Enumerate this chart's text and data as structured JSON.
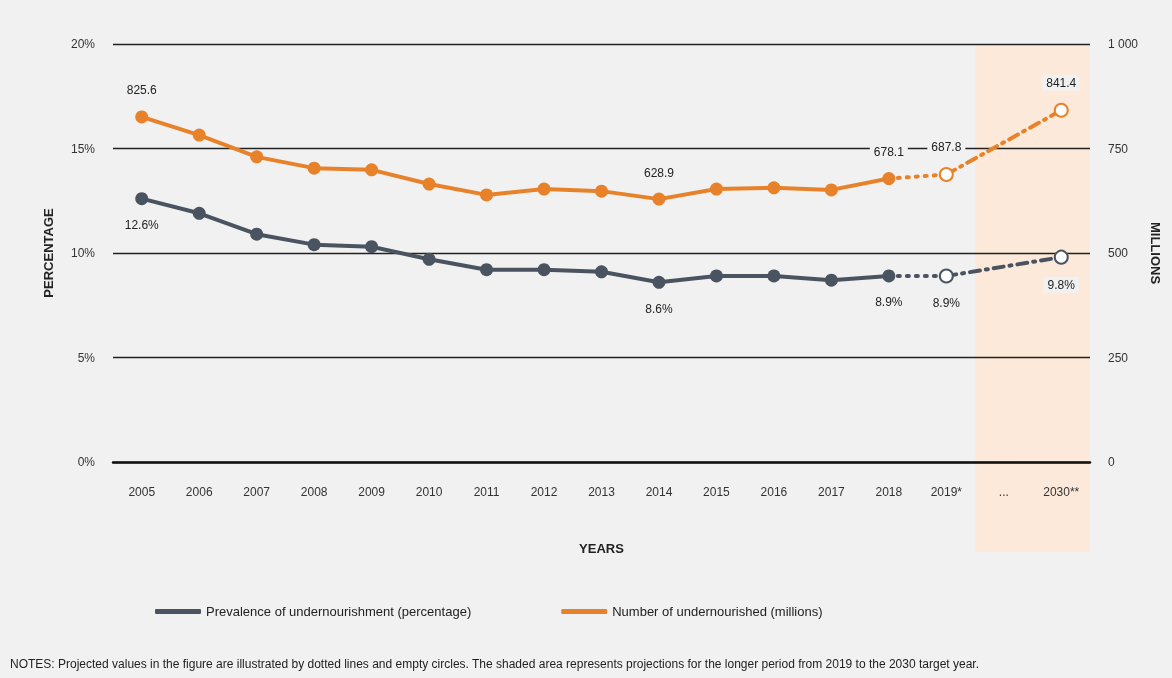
{
  "chart_data": {
    "type": "line",
    "categories": [
      "2005",
      "2006",
      "2007",
      "2008",
      "2009",
      "2010",
      "2011",
      "2012",
      "2013",
      "2014",
      "2015",
      "2016",
      "2017",
      "2018",
      "2019*",
      "...",
      "2030**"
    ],
    "series": [
      {
        "name": "Prevalence of undernourishment (percentage)",
        "color": "#4a5461",
        "line_style": "solid",
        "marker": "circle",
        "values": [
          12.6,
          11.9,
          10.9,
          10.4,
          10.3,
          9.7,
          9.2,
          9.2,
          9.1,
          8.6,
          8.9,
          8.9,
          8.7,
          8.9,
          null,
          null,
          null
        ],
        "value_labels": [
          "12.6%",
          null,
          null,
          null,
          null,
          null,
          null,
          null,
          null,
          "8.6%",
          null,
          null,
          null,
          "8.9%",
          null,
          null,
          null
        ]
      },
      {
        "color": "#4a5461",
        "line_style": "dotted",
        "values": [
          null,
          null,
          null,
          null,
          null,
          null,
          null,
          null,
          null,
          null,
          null,
          null,
          null,
          8.9,
          8.9,
          null,
          null
        ]
      },
      {
        "color": "#4a5461",
        "line_style": "dashed",
        "marker": "circle",
        "values": [
          null,
          null,
          null,
          null,
          null,
          null,
          null,
          null,
          null,
          null,
          null,
          null,
          null,
          null,
          8.9,
          null,
          9.8
        ],
        "value_labels": [
          null,
          null,
          null,
          null,
          null,
          null,
          null,
          null,
          null,
          null,
          null,
          null,
          null,
          null,
          "8.9%",
          null,
          "9.8%"
        ]
      },
      {
        "name": "Number of undernourished (millions)",
        "color": "#e8822a",
        "axis": "y2",
        "line_style": "solid",
        "marker": "circle",
        "values": [
          825.6,
          782,
          730,
          703,
          699,
          665,
          639,
          653,
          648,
          628.9,
          653,
          656,
          651,
          678.1,
          null,
          null,
          null
        ],
        "value_labels": [
          "825.6",
          null,
          null,
          null,
          null,
          null,
          null,
          null,
          null,
          "628.9",
          null,
          null,
          null,
          "678.1",
          null,
          null,
          null
        ]
      },
      {
        "color": "#e8822a",
        "axis": "y2",
        "line_style": "dotted",
        "values": [
          null,
          null,
          null,
          null,
          null,
          null,
          null,
          null,
          null,
          null,
          null,
          null,
          null,
          678.1,
          687.8,
          null,
          null
        ]
      },
      {
        "color": "#e8822a",
        "axis": "y2",
        "line_style": "dashed",
        "marker": "circle",
        "values": [
          null,
          null,
          null,
          null,
          null,
          null,
          null,
          null,
          null,
          null,
          null,
          null,
          null,
          null,
          687.8,
          null,
          841.4
        ],
        "value_labels": [
          null,
          null,
          null,
          null,
          null,
          null,
          null,
          null,
          null,
          null,
          null,
          null,
          null,
          null,
          "687.8",
          null,
          "841.4"
        ]
      }
    ],
    "xlabel": "YEARS",
    "ylabel": "PERCENTAGE",
    "y2label": "MILLIONS",
    "ylim": [
      0,
      20
    ],
    "yticks": [
      {
        "value": 0,
        "label": "0%"
      },
      {
        "value": 5,
        "label": "5%"
      },
      {
        "value": 10,
        "label": "10%"
      },
      {
        "value": 15,
        "label": "15%"
      },
      {
        "value": 20,
        "label": "20%"
      }
    ],
    "y2lim": [
      0,
      1000
    ],
    "y2ticks": [
      0,
      250,
      500,
      750,
      {
        "value": 1000,
        "label": "1 000"
      }
    ],
    "grid": "y",
    "legend": "bottom",
    "bands": [
      {
        "axis": "x",
        "from": "...",
        "to": "2030**",
        "color": "#fde9d9"
      }
    ],
    "annotations": [
      "NOTES: Projected values in the figure are illustrated by dotted lines and empty circles. The shaded area represents projections for the longer period from 2019 to the 2030 target year."
    ]
  }
}
